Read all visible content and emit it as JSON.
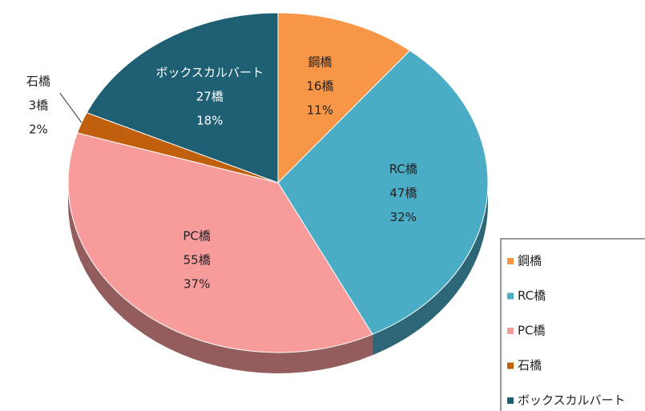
{
  "chart_data": {
    "type": "pie",
    "categories": [
      "鋼橋",
      "RC橋",
      "PC橋",
      "石橋",
      "ボックスカルバート"
    ],
    "values": [
      16,
      47,
      55,
      3,
      27
    ],
    "value_labels": [
      "16橋",
      "47橋",
      "55橋",
      "3橋",
      "27橋"
    ],
    "percent_labels": [
      "11%",
      "32%",
      "37%",
      "2%",
      "18%"
    ],
    "colors": [
      "#f79646",
      "#4bacc6",
      "#f79b9b",
      "#c0600c",
      "#1f5f73"
    ],
    "legend": "right"
  }
}
